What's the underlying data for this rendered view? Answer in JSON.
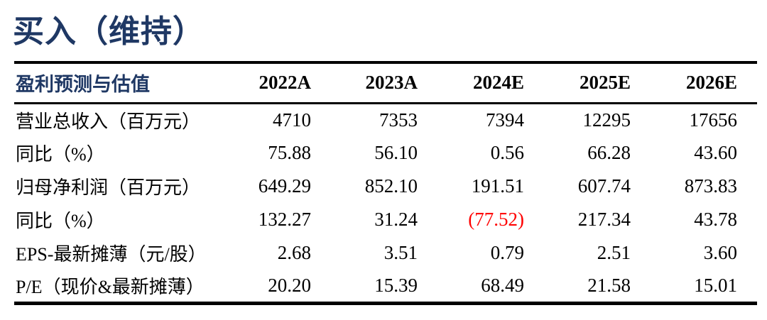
{
  "page": {
    "title": "买入（维持）"
  },
  "table": {
    "title": "盈利预测与估值",
    "columns": [
      "2022A",
      "2023A",
      "2024E",
      "2025E",
      "2026E"
    ],
    "rows": [
      {
        "label": "营业总收入（百万元）",
        "values": [
          "4710",
          "7353",
          "7394",
          "12295",
          "17656"
        ]
      },
      {
        "label": "同比（%）",
        "values": [
          "75.88",
          "56.10",
          "0.56",
          "66.28",
          "43.60"
        ]
      },
      {
        "label": "归母净利润（百万元）",
        "values": [
          "649.29",
          "852.10",
          "191.51",
          "607.74",
          "873.83"
        ]
      },
      {
        "label": "同比（%）",
        "values": [
          "132.27",
          "31.24",
          "(77.52)",
          "217.34",
          "43.78"
        ],
        "negative_cols": [
          2
        ]
      },
      {
        "label": "EPS-最新摊薄（元/股）",
        "values": [
          "2.68",
          "3.51",
          "0.79",
          "2.51",
          "3.60"
        ]
      },
      {
        "label": "P/E（现价&最新摊薄）",
        "values": [
          "20.20",
          "15.39",
          "68.49",
          "21.58",
          "15.01"
        ]
      }
    ]
  },
  "colors": {
    "accent_navy": "#1f3864",
    "negative_red": "#ff0000"
  }
}
